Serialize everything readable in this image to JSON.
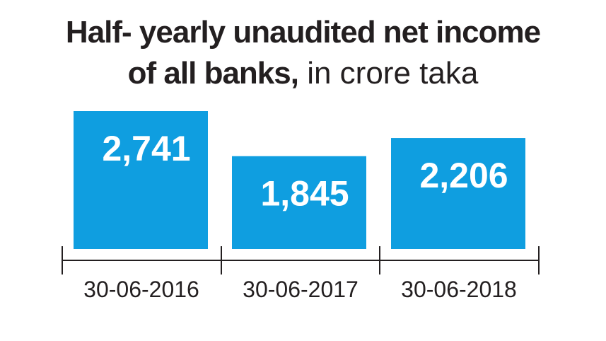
{
  "chart_data": {
    "type": "bar",
    "title_line1": "Half- yearly unaudited net income",
    "title_line2_bold": "of all banks,",
    "title_line2_regular": " in crore taka",
    "categories": [
      "30-06-2016",
      "30-06-2017",
      "30-06-2018"
    ],
    "values": [
      2741,
      1845,
      2206
    ],
    "value_labels": [
      "2,741",
      "1,845",
      "2,206"
    ],
    "bar_color": "#0f9ee0",
    "label_color": "#ffffff",
    "axis_color": "#231f20",
    "grid": false
  }
}
